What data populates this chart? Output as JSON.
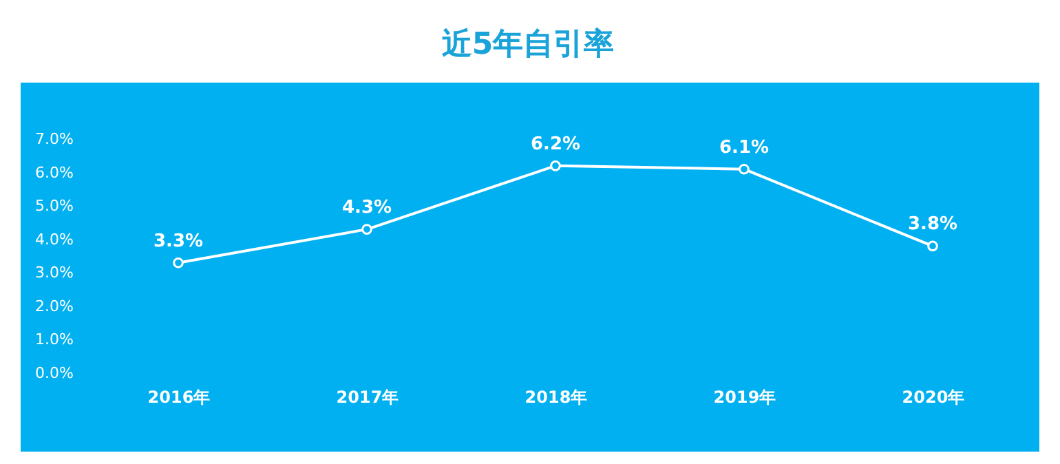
{
  "chart_data": {
    "type": "line",
    "title": "近5年自引率",
    "categories": [
      "2016年",
      "2017年",
      "2018年",
      "2019年",
      "2020年"
    ],
    "series": [
      {
        "color": "#ffffff",
        "values": [
          3.3,
          4.3,
          6.2,
          6.1,
          3.8
        ],
        "value_labels": [
          "3.3%",
          "4.3%",
          "6.2%",
          "6.1%",
          "3.8%"
        ]
      }
    ],
    "ylim": [
      0,
      7
    ],
    "yticks": [
      {
        "value": 0,
        "label": "0.0%"
      },
      {
        "value": 1,
        "label": "1.0%"
      },
      {
        "value": 2,
        "label": "2.0%"
      },
      {
        "value": 3,
        "label": "3.0%"
      },
      {
        "value": 4,
        "label": "4.0%"
      },
      {
        "value": 5,
        "label": "5.0%"
      },
      {
        "value": 6,
        "label": "6.0%"
      },
      {
        "value": 7,
        "label": "7.0%"
      }
    ],
    "marker": "circle",
    "line_style": "solid"
  }
}
